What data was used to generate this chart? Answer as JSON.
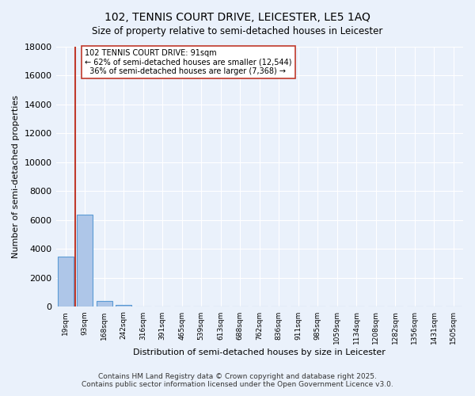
{
  "title_line1": "102, TENNIS COURT DRIVE, LEICESTER, LE5 1AQ",
  "title_line2": "Size of property relative to semi-detached houses in Leicester",
  "xlabel": "Distribution of semi-detached houses by size in Leicester",
  "ylabel": "Number of semi-detached properties",
  "property_size": 91,
  "property_label": "102 TENNIS COURT DRIVE: 91sqm",
  "pct_smaller": 62,
  "count_smaller": 12544,
  "pct_larger": 36,
  "count_larger": 7368,
  "bin_labels": [
    "19sqm",
    "93sqm",
    "168sqm",
    "242sqm",
    "316sqm",
    "391sqm",
    "465sqm",
    "539sqm",
    "613sqm",
    "688sqm",
    "762sqm",
    "836sqm",
    "911sqm",
    "985sqm",
    "1059sqm",
    "1134sqm",
    "1208sqm",
    "1282sqm",
    "1356sqm",
    "1431sqm",
    "1505sqm"
  ],
  "bar_values": [
    3500,
    6400,
    400,
    150,
    0,
    0,
    0,
    0,
    0,
    0,
    0,
    0,
    0,
    0,
    0,
    0,
    0,
    0,
    0,
    0,
    0
  ],
  "bar_color": "#aec6e8",
  "bar_edge_color": "#5b9bd5",
  "vline_position": 0.5,
  "vline_color": "#c0392b",
  "ylim": [
    0,
    18000
  ],
  "yticks": [
    0,
    2000,
    4000,
    6000,
    8000,
    10000,
    12000,
    14000,
    16000,
    18000
  ],
  "background_color": "#eaf1fb",
  "grid_color": "#ffffff",
  "annotation_box_color": "#ffffff",
  "annotation_box_edge": "#c0392b",
  "footer_line1": "Contains HM Land Registry data © Crown copyright and database right 2025.",
  "footer_line2": "Contains public sector information licensed under the Open Government Licence v3.0."
}
